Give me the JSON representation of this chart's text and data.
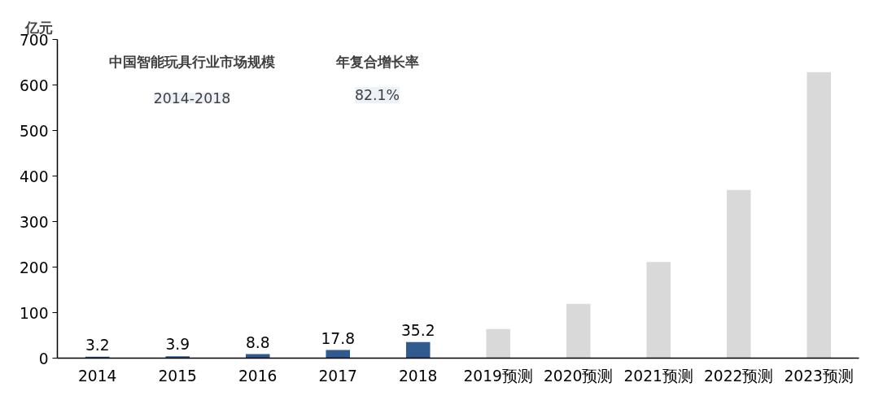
{
  "chart_data": {
    "type": "bar",
    "ylabel": "亿元",
    "categories": [
      "2014",
      "2015",
      "2016",
      "2017",
      "2018",
      "2019预测",
      "2020预测",
      "2021预测",
      "2022预测",
      "2023预测"
    ],
    "values": [
      3.2,
      3.9,
      8.8,
      17.8,
      35.2,
      64,
      119,
      211,
      369,
      628
    ],
    "colors": [
      "#2f5b8e",
      "#2f5b8e",
      "#2f5b8e",
      "#2f5b8e",
      "#2f5b8e",
      "#d9d9d9",
      "#d9d9d9",
      "#d9d9d9",
      "#d9d9d9",
      "#d9d9d9"
    ],
    "value_labels": [
      "3.2",
      "3.9",
      "8.8",
      "17.8",
      "35.2",
      null,
      null,
      null,
      null,
      null
    ],
    "ylim": [
      0,
      700
    ],
    "yticks": [
      0,
      100,
      200,
      300,
      400,
      500,
      600,
      700
    ],
    "grid": false,
    "annotations": [
      "中国智能玩具行业市场规模",
      "年复合增长率",
      "2014-2018",
      "82.1%"
    ]
  }
}
